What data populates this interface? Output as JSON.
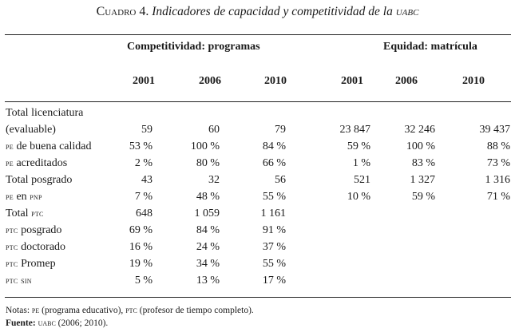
{
  "caption": {
    "prefix": "Cuadro 4.",
    "title": "Indicadores de capacidad y competitividad de la",
    "institution": "uabc"
  },
  "groups": {
    "competitividad": "Competitividad: programas",
    "equidad": "Equidad: matrícula"
  },
  "years": {
    "comp": [
      "2001",
      "2006",
      "2010"
    ],
    "eq": [
      "2001",
      "2006",
      "2010"
    ]
  },
  "rows": [
    {
      "label_main": "Total licenciatura",
      "label_sc": "",
      "label_tail": "",
      "comp": [
        "",
        "",
        ""
      ],
      "eq": [
        "",
        "",
        ""
      ]
    },
    {
      "label_main": "(evaluable)",
      "label_sc": "",
      "label_tail": "",
      "comp": [
        "59",
        "60",
        "79"
      ],
      "eq": [
        "23 847",
        "32 246",
        "39 437"
      ]
    },
    {
      "label_main": "",
      "label_sc": "pe",
      "label_tail": " de buena calidad",
      "comp": [
        "53 %",
        "100 %",
        "84 %"
      ],
      "eq": [
        "59 %",
        "100 %",
        "88 %"
      ]
    },
    {
      "label_main": "",
      "label_sc": "pe",
      "label_tail": " acreditados",
      "comp": [
        "2 %",
        "80 %",
        "66 %"
      ],
      "eq": [
        "1 %",
        "83 %",
        "73 %"
      ]
    },
    {
      "label_main": "Total posgrado",
      "label_sc": "",
      "label_tail": "",
      "comp": [
        "43",
        "32",
        "56"
      ],
      "eq": [
        "521",
        "1 327",
        "1 316"
      ]
    },
    {
      "label_main": "",
      "label_sc": "pe",
      "label_tail": " en ",
      "label_sc2": "pnp",
      "comp": [
        "7 %",
        "48 %",
        "55 %"
      ],
      "eq": [
        "10 %",
        "59 %",
        "71 %"
      ]
    },
    {
      "label_main": "Total ",
      "label_sc": "ptc",
      "label_tail": "",
      "comp": [
        "648",
        "1 059",
        "1 161"
      ],
      "eq": [
        "",
        "",
        ""
      ]
    },
    {
      "label_main": "",
      "label_sc": "ptc",
      "label_tail": " posgrado",
      "comp": [
        "69 %",
        "84 %",
        "91 %"
      ],
      "eq": [
        "",
        "",
        ""
      ]
    },
    {
      "label_main": "",
      "label_sc": "ptc",
      "label_tail": " doctorado",
      "comp": [
        "16 %",
        "24 %",
        "37 %"
      ],
      "eq": [
        "",
        "",
        ""
      ]
    },
    {
      "label_main": "",
      "label_sc": "ptc",
      "label_tail": " Promep",
      "comp": [
        "19 %",
        "34 %",
        "55 %"
      ],
      "eq": [
        "",
        "",
        ""
      ]
    },
    {
      "label_main": "",
      "label_sc": "ptc",
      "label_tail": " ",
      "label_sc2": "sin",
      "comp": [
        "5 %",
        "13 %",
        "17 %"
      ],
      "eq": [
        "",
        "",
        ""
      ]
    }
  ],
  "notes": {
    "prefix": "Notas:",
    "pe_abbr": "pe",
    "pe_text": " (programa educativo), ",
    "ptc_abbr": "ptc",
    "ptc_text": " (profesor de tiempo completo).",
    "source_label": "Fuente:",
    "source_abbr": "uabc",
    "source_text": " (2006; 2010)."
  }
}
